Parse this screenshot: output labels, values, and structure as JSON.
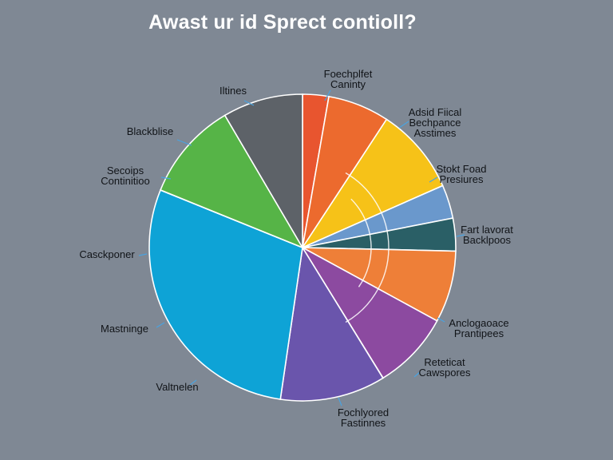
{
  "title": "Awast ur id Sprect contioll?",
  "chart_data": {
    "type": "pie",
    "title": "Awast ur id Sprect contioll?",
    "slices": [
      {
        "label": [
          "Foechplfet",
          "Caninty"
        ],
        "value": 2.8,
        "color": "#e8552f"
      },
      {
        "label": [],
        "value": 6.6,
        "color": "#ec6a2e"
      },
      {
        "label": [
          "Adsid Fiical",
          "Bechpance",
          "Asstimes"
        ],
        "value": 9.3,
        "color": "#f6c218"
      },
      {
        "label": [
          "Stokt Foad",
          "Presiures"
        ],
        "value": 3.6,
        "color": "#6a98cc"
      },
      {
        "label": [
          "Fart lavorat",
          "Backlpoos"
        ],
        "value": 3.5,
        "color": "#2a5f66"
      },
      {
        "label": [],
        "value": 7.7,
        "color": "#ee7f38"
      },
      {
        "label": [
          "Anclogaoace",
          "Prantipees"
        ],
        "value": 8.4,
        "color": "#8c4aa0"
      },
      {
        "label": [
          "Reteticat",
          "Cawspores"
        ],
        "value": 0.01,
        "color": "#8c4aa0"
      },
      {
        "label": [
          "Fochlyored",
          "Fastinnes"
        ],
        "value": 11.3,
        "color": "#6a55ac"
      },
      {
        "label": [
          "Valtnelen",
          "Mastninge",
          "Casckponer"
        ],
        "value": 29.3,
        "color": "#0ea3d6"
      },
      {
        "label": [
          "Secoips",
          "Continitioo"
        ],
        "value": 0.01,
        "color": "#56b447"
      },
      {
        "label": [
          "Blackblise"
        ],
        "value": 10.6,
        "color": "#56b447"
      },
      {
        "label": [
          "Iltines"
        ],
        "value": 8.6,
        "color": "#5d6268"
      }
    ]
  },
  "callouts": [
    {
      "lines": [
        "Foechplfet",
        "Caninty"
      ]
    },
    {
      "lines": [
        "Iltines"
      ]
    },
    {
      "lines": [
        "Blackblise"
      ]
    },
    {
      "lines": [
        "Adsid Fiical",
        "Bechpance",
        "Asstimes"
      ]
    },
    {
      "lines": [
        "Secoips",
        "Continitioo"
      ]
    },
    {
      "lines": [
        "Stokt Foad",
        "Presiures"
      ]
    },
    {
      "lines": [
        "Fart lavorat",
        "Backlpoos"
      ]
    },
    {
      "lines": [
        "Casckponer"
      ]
    },
    {
      "lines": [
        "Anclogaoace",
        "Prantipees"
      ]
    },
    {
      "lines": [
        "Mastninge"
      ]
    },
    {
      "lines": [
        "Reteticat",
        "Cawspores"
      ]
    },
    {
      "lines": [
        "Valtnelen"
      ]
    },
    {
      "lines": [
        "Fochlyored",
        "Fastinnes"
      ]
    }
  ]
}
